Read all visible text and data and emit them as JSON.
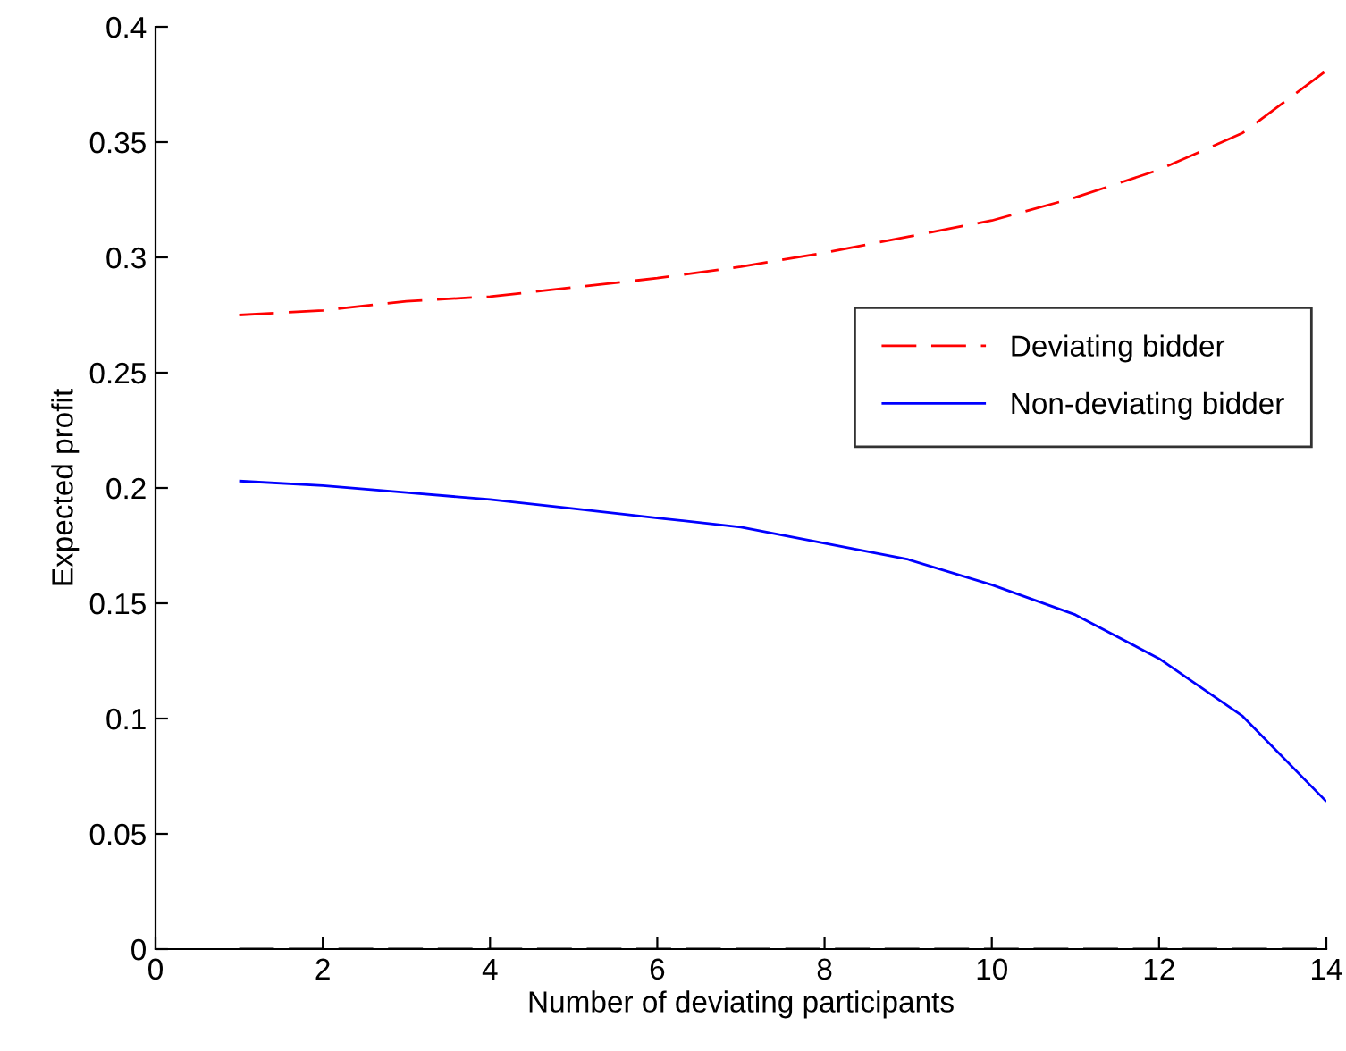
{
  "chart_data": {
    "type": "line",
    "xlabel": "Number of deviating participants",
    "ylabel": "Expected profit",
    "x": [
      1,
      2,
      3,
      4,
      5,
      6,
      7,
      8,
      9,
      10,
      11,
      12,
      13,
      14
    ],
    "series": [
      {
        "name": "Deviating bidder",
        "color": "#ff0000",
        "line_style": "dashed",
        "values": [
          0.275,
          0.277,
          0.281,
          0.283,
          0.287,
          0.291,
          0.296,
          0.302,
          0.309,
          0.316,
          0.326,
          0.338,
          0.354,
          0.381
        ]
      },
      {
        "name": "Non-deviating bidder",
        "color": "#0000ff",
        "line_style": "solid",
        "values": [
          0.203,
          0.201,
          0.198,
          0.195,
          0.191,
          0.187,
          0.183,
          0.176,
          0.169,
          0.158,
          0.145,
          0.126,
          0.101,
          0.064
        ]
      },
      {
        "color": "#000000",
        "line_style": "dashed",
        "values": [
          0,
          0,
          0,
          0,
          0,
          0,
          0,
          0,
          0,
          0,
          0,
          0,
          0,
          0
        ]
      }
    ],
    "xlim": [
      0,
      14
    ],
    "xticks": [
      0,
      2,
      4,
      6,
      8,
      10,
      12,
      14
    ],
    "ylim": [
      0,
      0.4
    ],
    "yticks": [
      0,
      0.05,
      0.1,
      0.15,
      0.2,
      0.25,
      0.3,
      0.35,
      0.4
    ],
    "grid": false,
    "legend": "right",
    "marker": "none"
  }
}
